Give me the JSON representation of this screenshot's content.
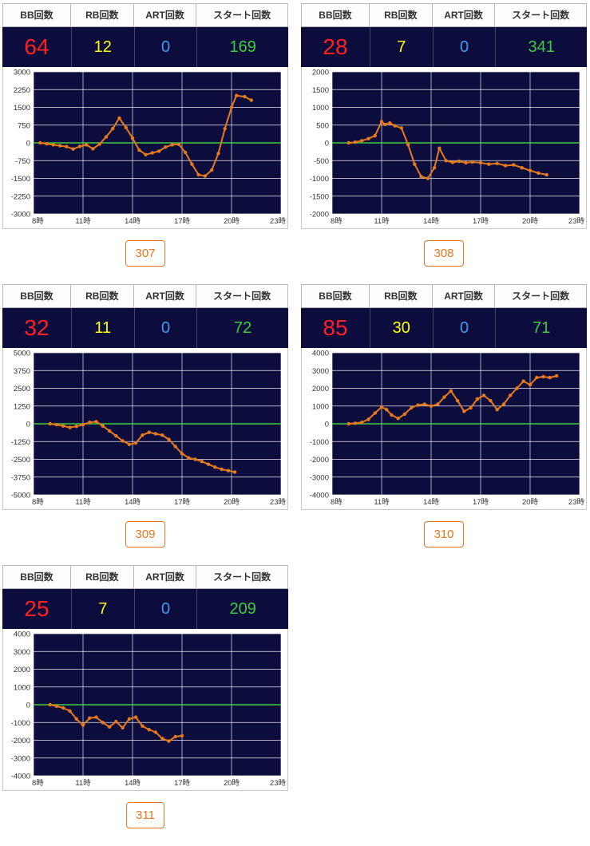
{
  "header_labels": [
    "BB回数",
    "RB回数",
    "ART回数",
    "スタート回数"
  ],
  "colors": {
    "bb_value": "#ff2020",
    "rb_value": "#ffff00",
    "art_value": "#3f9ce8",
    "start_value": "#3dcc3d",
    "value_row_bg": "#0d0d3d",
    "plot_bg": "#0d0d3d",
    "grid_line": "#ffffff",
    "zero_line": "#3dcc3d",
    "series_line": "#e87a1e",
    "badge": "#e8761f"
  },
  "chart_data": [
    {
      "type": "line",
      "title": "307",
      "machine": "307",
      "stats": {
        "bb": "64",
        "rb": "12",
        "art": "0",
        "start": "169"
      },
      "xticks": [
        8,
        11,
        14,
        17,
        20,
        23
      ],
      "xtick_labels": [
        "8時",
        "11時",
        "14時",
        "17時",
        "20時",
        "23時"
      ],
      "ylim": [
        -3000,
        3000
      ],
      "ytick_step": 750,
      "points": [
        [
          8.4,
          0
        ],
        [
          8.8,
          -40
        ],
        [
          9.2,
          -80
        ],
        [
          9.6,
          -120
        ],
        [
          10,
          -160
        ],
        [
          10.4,
          -260
        ],
        [
          10.8,
          -150
        ],
        [
          11.2,
          -80
        ],
        [
          11.6,
          -250
        ],
        [
          12,
          -50
        ],
        [
          12.4,
          250
        ],
        [
          12.8,
          600
        ],
        [
          13.2,
          1050
        ],
        [
          13.6,
          650
        ],
        [
          14,
          200
        ],
        [
          14.4,
          -300
        ],
        [
          14.8,
          -500
        ],
        [
          15.2,
          -420
        ],
        [
          15.6,
          -350
        ],
        [
          16,
          -180
        ],
        [
          16.4,
          -80
        ],
        [
          16.8,
          -60
        ],
        [
          17.2,
          -400
        ],
        [
          17.6,
          -900
        ],
        [
          18,
          -1350
        ],
        [
          18.4,
          -1400
        ],
        [
          18.8,
          -1150
        ],
        [
          19.2,
          -450
        ],
        [
          19.6,
          600
        ],
        [
          20,
          1500
        ],
        [
          20.3,
          2000
        ],
        [
          20.8,
          1950
        ],
        [
          21.2,
          1800
        ]
      ]
    },
    {
      "type": "line",
      "title": "308",
      "machine": "308",
      "stats": {
        "bb": "28",
        "rb": "7",
        "art": "0",
        "start": "341"
      },
      "xticks": [
        8,
        11,
        14,
        17,
        20,
        23
      ],
      "xtick_labels": [
        "8時",
        "11時",
        "14時",
        "17時",
        "20時",
        "23時"
      ],
      "ylim": [
        -2000,
        2000
      ],
      "ytick_step": 500,
      "points": [
        [
          9,
          0
        ],
        [
          9.4,
          20
        ],
        [
          9.8,
          60
        ],
        [
          10.2,
          120
        ],
        [
          10.6,
          200
        ],
        [
          11,
          600
        ],
        [
          11.2,
          520
        ],
        [
          11.5,
          560
        ],
        [
          11.8,
          480
        ],
        [
          12.2,
          420
        ],
        [
          12.6,
          -50
        ],
        [
          13,
          -600
        ],
        [
          13.4,
          -950
        ],
        [
          13.8,
          -1000
        ],
        [
          14.2,
          -700
        ],
        [
          14.5,
          -150
        ],
        [
          14.9,
          -500
        ],
        [
          15.3,
          -550
        ],
        [
          15.7,
          -520
        ],
        [
          16.1,
          -560
        ],
        [
          16.5,
          -540
        ],
        [
          17,
          -560
        ],
        [
          17.5,
          -600
        ],
        [
          18,
          -580
        ],
        [
          18.5,
          -640
        ],
        [
          19,
          -620
        ],
        [
          19.5,
          -700
        ],
        [
          20,
          -780
        ],
        [
          20.5,
          -850
        ],
        [
          21,
          -900
        ]
      ]
    },
    {
      "type": "line",
      "title": "309",
      "machine": "309",
      "stats": {
        "bb": "32",
        "rb": "11",
        "art": "0",
        "start": "72"
      },
      "xticks": [
        8,
        11,
        14,
        17,
        20,
        23
      ],
      "xtick_labels": [
        "8時",
        "11時",
        "14時",
        "17時",
        "20時",
        "23時"
      ],
      "ylim": [
        -5000,
        5000
      ],
      "ytick_step": 1250,
      "points": [
        [
          9,
          0
        ],
        [
          9.4,
          -60
        ],
        [
          9.8,
          -150
        ],
        [
          10.2,
          -260
        ],
        [
          10.6,
          -180
        ],
        [
          11,
          -60
        ],
        [
          11.4,
          100
        ],
        [
          11.8,
          150
        ],
        [
          12.2,
          -150
        ],
        [
          12.6,
          -500
        ],
        [
          13,
          -850
        ],
        [
          13.4,
          -1200
        ],
        [
          13.8,
          -1450
        ],
        [
          14.2,
          -1350
        ],
        [
          14.6,
          -800
        ],
        [
          15,
          -600
        ],
        [
          15.4,
          -700
        ],
        [
          15.8,
          -800
        ],
        [
          16.2,
          -1100
        ],
        [
          16.6,
          -1600
        ],
        [
          17,
          -2100
        ],
        [
          17.4,
          -2400
        ],
        [
          17.8,
          -2500
        ],
        [
          18.2,
          -2650
        ],
        [
          18.6,
          -2850
        ],
        [
          19,
          -3050
        ],
        [
          19.4,
          -3200
        ],
        [
          19.8,
          -3300
        ],
        [
          20.2,
          -3400
        ]
      ]
    },
    {
      "type": "line",
      "title": "310",
      "machine": "310",
      "stats": {
        "bb": "85",
        "rb": "30",
        "art": "0",
        "start": "71"
      },
      "xticks": [
        8,
        11,
        14,
        17,
        20,
        23
      ],
      "xtick_labels": [
        "8時",
        "11時",
        "14時",
        "17時",
        "20時",
        "23時"
      ],
      "ylim": [
        -4000,
        4000
      ],
      "ytick_step": 1000,
      "points": [
        [
          9,
          0
        ],
        [
          9.4,
          30
        ],
        [
          9.8,
          80
        ],
        [
          10.2,
          250
        ],
        [
          10.6,
          600
        ],
        [
          11,
          950
        ],
        [
          11.3,
          800
        ],
        [
          11.6,
          500
        ],
        [
          12,
          300
        ],
        [
          12.4,
          550
        ],
        [
          12.8,
          900
        ],
        [
          13.2,
          1050
        ],
        [
          13.6,
          1100
        ],
        [
          14,
          1000
        ],
        [
          14.4,
          1100
        ],
        [
          14.8,
          1500
        ],
        [
          15.2,
          1850
        ],
        [
          15.6,
          1300
        ],
        [
          16,
          700
        ],
        [
          16.4,
          900
        ],
        [
          16.8,
          1400
        ],
        [
          17.2,
          1600
        ],
        [
          17.6,
          1300
        ],
        [
          18,
          800
        ],
        [
          18.4,
          1100
        ],
        [
          18.8,
          1600
        ],
        [
          19.2,
          2000
        ],
        [
          19.6,
          2400
        ],
        [
          20,
          2200
        ],
        [
          20.4,
          2600
        ],
        [
          20.8,
          2650
        ],
        [
          21.2,
          2600
        ],
        [
          21.6,
          2700
        ]
      ]
    },
    {
      "type": "line",
      "title": "311",
      "machine": "311",
      "stats": {
        "bb": "25",
        "rb": "7",
        "art": "0",
        "start": "209"
      },
      "xticks": [
        8,
        11,
        14,
        17,
        20,
        23
      ],
      "xtick_labels": [
        "8時",
        "11時",
        "14時",
        "17時",
        "20時",
        "23時"
      ],
      "ylim": [
        -4000,
        4000
      ],
      "ytick_step": 1000,
      "points": [
        [
          9,
          0
        ],
        [
          9.4,
          -80
        ],
        [
          9.8,
          -180
        ],
        [
          10.2,
          -350
        ],
        [
          10.6,
          -800
        ],
        [
          11,
          -1150
        ],
        [
          11.4,
          -750
        ],
        [
          11.8,
          -700
        ],
        [
          12.2,
          -1000
        ],
        [
          12.6,
          -1250
        ],
        [
          13,
          -950
        ],
        [
          13.4,
          -1300
        ],
        [
          13.8,
          -800
        ],
        [
          14.2,
          -700
        ],
        [
          14.6,
          -1200
        ],
        [
          15,
          -1400
        ],
        [
          15.4,
          -1550
        ],
        [
          15.8,
          -1900
        ],
        [
          16.2,
          -2050
        ],
        [
          16.6,
          -1800
        ],
        [
          17,
          -1750
        ]
      ]
    }
  ]
}
